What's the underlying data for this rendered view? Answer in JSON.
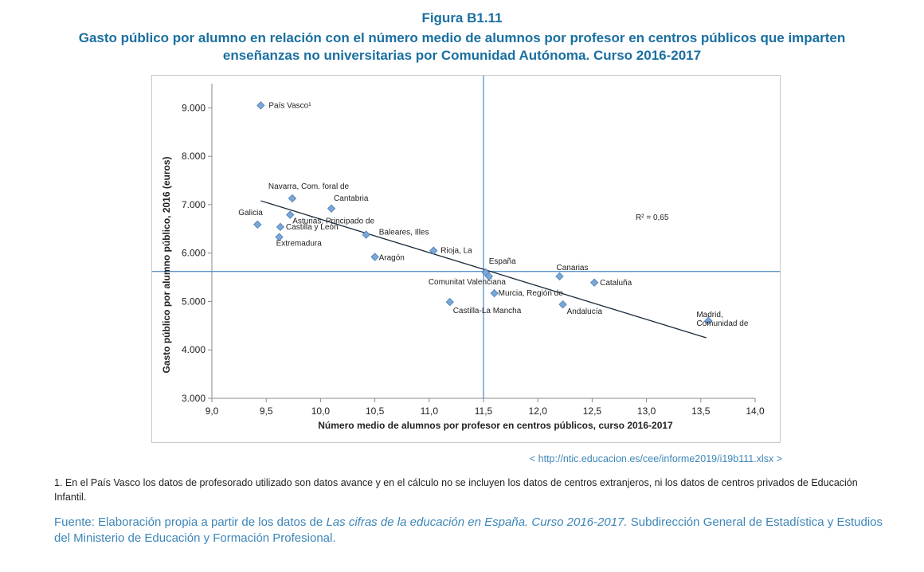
{
  "figure_number": "Figura B1.11",
  "title": "Gasto público por alumno en relación con el número medio de alumnos por profesor en centros públicos que imparten enseñanzas no universitarias por Comunidad Autónoma. Curso 2016-2017",
  "source_link": "< http://ntic.educacion.es/cee/informe2019/i19b111.xlsx >",
  "footnote": "1. En el País Vasco los datos de profesorado utilizado son datos avance y en el cálculo no se incluyen los datos de centros extranjeros, ni los datos de centros privados de Educación Infantil.",
  "fuente": {
    "prefix": "Fuente: Elaboración propia a partir de los datos de ",
    "italic": "Las cifras de la educación en España. Curso 2016-2017.",
    "suffix": " Subdirección General de Estadística y Estudios del Ministerio de Educación y Formación Profesional."
  },
  "chart_data": {
    "type": "scatter",
    "xlabel": "Número medio de alumnos por profesor en centros públicos,  curso 2016-2017",
    "ylabel": "Gasto público por alumno público, 2016 (euros)",
    "xlim": [
      9.0,
      14.0
    ],
    "ylim": [
      3000,
      9500
    ],
    "xticks": [
      "9,0",
      "9,5",
      "10,0",
      "10,5",
      "11,0",
      "11,5",
      "12,0",
      "12,5",
      "13,0",
      "13,5",
      "14,0"
    ],
    "yticks": [
      "3.000",
      "4.000",
      "5.000",
      "6.000",
      "7.000",
      "8.000",
      "9.000"
    ],
    "reference_lines": {
      "x": 11.5,
      "y": 5620
    },
    "annotation": "R² = 0,65",
    "trendline": {
      "x": [
        9.45,
        13.55
      ],
      "y": [
        7080,
        4250
      ]
    },
    "marker_color": "#7ba7d7",
    "line_color": "#4a86c5",
    "points": [
      {
        "label": "País Vasco¹",
        "lines": [
          "País Vasco¹"
        ],
        "x": 9.45,
        "y": 9050
      },
      {
        "label": "Navarra, Com. foral de",
        "lines": [
          "Navarra, Com. foral de"
        ],
        "x": 9.74,
        "y": 7130
      },
      {
        "label": "Cantabria",
        "lines": [
          "Cantabria"
        ],
        "x": 10.1,
        "y": 6920
      },
      {
        "label": "Asturias, Principado de",
        "lines": [
          "Asturias, Principado de"
        ],
        "x": 9.72,
        "y": 6790
      },
      {
        "label": "Galicia",
        "lines": [
          "Galicia"
        ],
        "x": 9.42,
        "y": 6590
      },
      {
        "label": "Castilla y León",
        "lines": [
          "Castilla y León"
        ],
        "x": 9.63,
        "y": 6540
      },
      {
        "label": "Extremadura",
        "lines": [
          "Extremadura"
        ],
        "x": 9.62,
        "y": 6330
      },
      {
        "label": "Baleares, Illes",
        "lines": [
          "Baleares, Illes"
        ],
        "x": 10.42,
        "y": 6380
      },
      {
        "label": "Aragón",
        "lines": [
          "Aragón"
        ],
        "x": 10.5,
        "y": 5920
      },
      {
        "label": "Rioja, La",
        "lines": [
          "Rioja, La"
        ],
        "x": 11.04,
        "y": 6050
      },
      {
        "label": "España",
        "lines": [
          "España"
        ],
        "x": 11.52,
        "y": 5600
      },
      {
        "label": "Comunitat Valenciana",
        "lines": [
          "Comunitat Valenciana"
        ],
        "x": 11.55,
        "y": 5520
      },
      {
        "label": "Canarias",
        "lines": [
          "Canarias"
        ],
        "x": 12.2,
        "y": 5520
      },
      {
        "label": "Cataluña",
        "lines": [
          "Cataluña"
        ],
        "x": 12.52,
        "y": 5390
      },
      {
        "label": "Murcia, Región de",
        "lines": [
          "Murcia, Región de"
        ],
        "x": 11.6,
        "y": 5170
      },
      {
        "label": "Castilla-La Mancha",
        "lines": [
          "Castilla-La Mancha"
        ],
        "x": 11.19,
        "y": 4990
      },
      {
        "label": "Andalucía",
        "lines": [
          "Andalucía"
        ],
        "x": 12.23,
        "y": 4940
      },
      {
        "label": "Madrid, Comunidad de",
        "lines": [
          "Madrid,",
          "Comunidad de"
        ],
        "x": 13.57,
        "y": 4600
      }
    ]
  }
}
